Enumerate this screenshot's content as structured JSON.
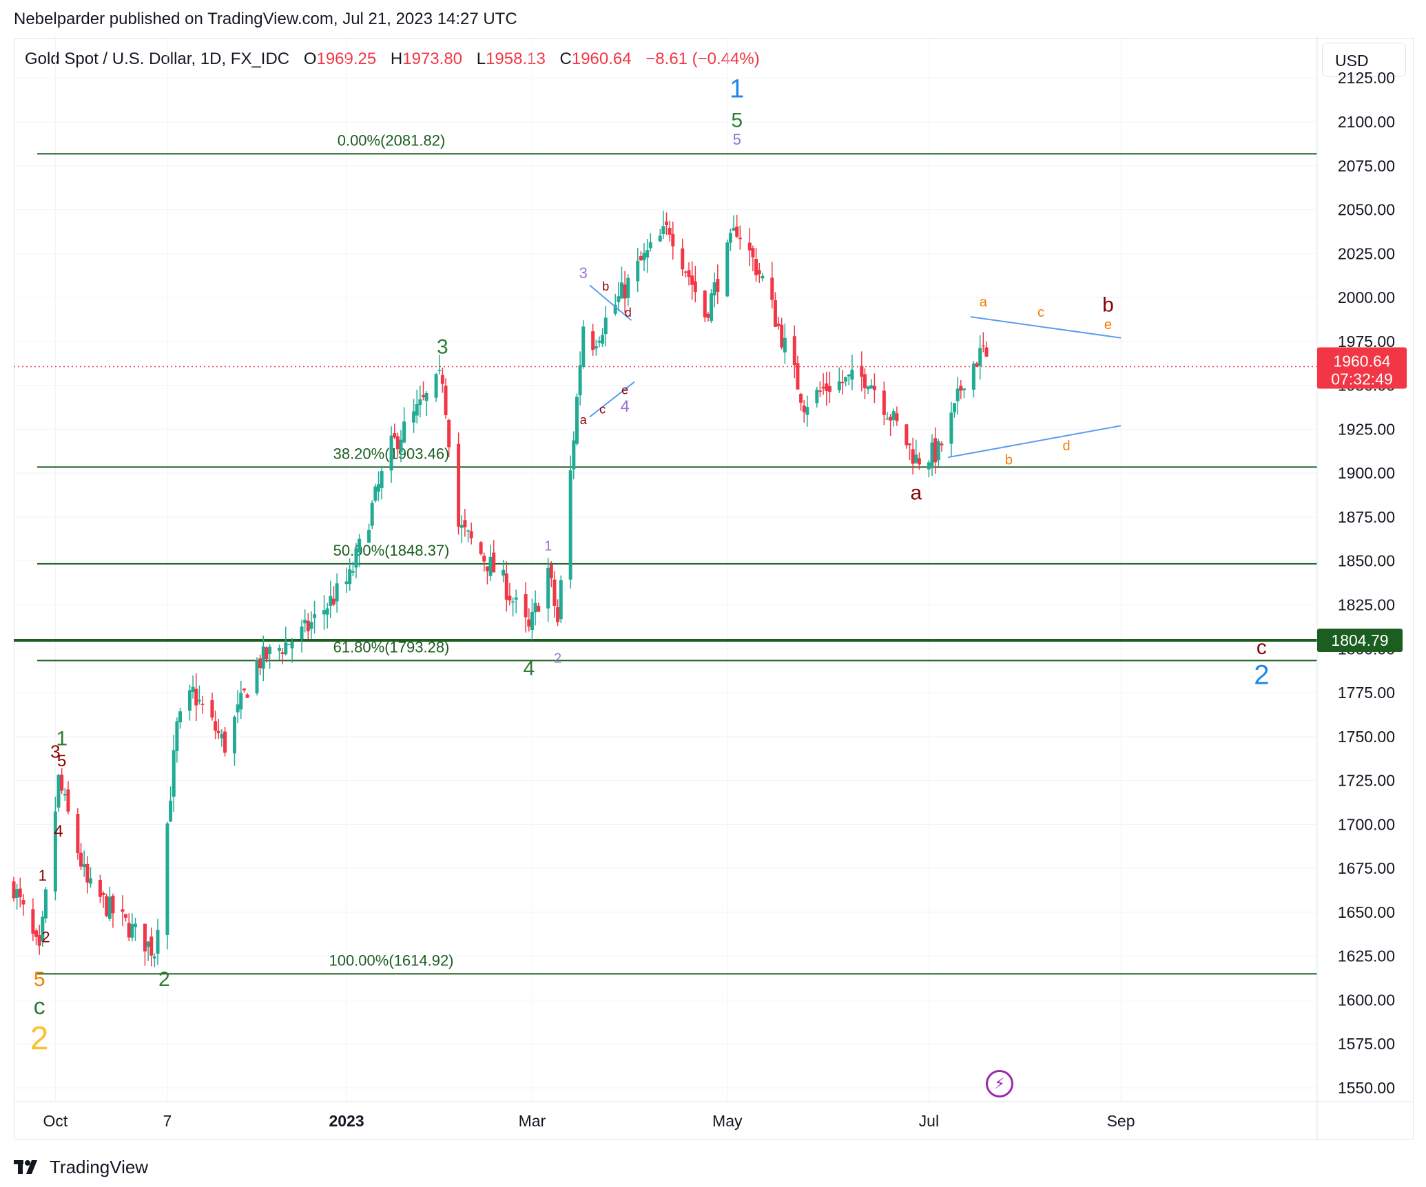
{
  "header": {
    "published_text": "Nebelparder published on TradingView.com, Jul 21, 2023 14:27 UTC"
  },
  "legend": {
    "symbol": "Gold Spot / U.S. Dollar, 1D, FX_IDC",
    "open_label": "O",
    "open": "1969.25",
    "high_label": "H",
    "high": "1973.80",
    "low_label": "L",
    "low": "1958.13",
    "close_label": "C",
    "close": "1960.64",
    "change": "−8.61 (−0.44%)"
  },
  "currency_button": "USD",
  "footer": {
    "brand": "TradingView"
  },
  "colors": {
    "up": "#22ab94",
    "down": "#f23645",
    "fib": "#1b5e20",
    "blue": "#1e88e5",
    "line_blue": "#5b9cf0",
    "purple": "#9575cd",
    "orange": "#f57c00",
    "dark_red": "#8b0000",
    "gold": "#fbc02d",
    "green_wave": "#2e7d32"
  },
  "chart_data": {
    "type": "candlestick",
    "y_axis": {
      "min": 1537,
      "max": 2125,
      "ticks": [
        "2125.00",
        "2100.00",
        "2075.00",
        "2050.00",
        "2025.00",
        "2000.00",
        "1975.00",
        "1950.00",
        "1925.00",
        "1900.00",
        "1875.00",
        "1850.00",
        "1825.00",
        "1800.00",
        "1775.00",
        "1750.00",
        "1725.00",
        "1700.00",
        "1675.00",
        "1650.00",
        "1625.00",
        "1600.00",
        "1575.00",
        "1550.00"
      ]
    },
    "x_axis": {
      "start": "2022-09-20",
      "end": "2023-10-19",
      "ticks": [
        {
          "label": "Oct",
          "date": "2022-10-03",
          "bold": false
        },
        {
          "label": "7",
          "date": "2022-11-07",
          "bold": false
        },
        {
          "label": "2023",
          "date": "2023-01-02",
          "bold": true
        },
        {
          "label": "Mar",
          "date": "2023-03-01",
          "bold": false
        },
        {
          "label": "May",
          "date": "2023-05-01",
          "bold": false
        },
        {
          "label": "Jul",
          "date": "2023-07-03",
          "bold": false
        },
        {
          "label": "Sep",
          "date": "2023-09-01",
          "bold": false
        }
      ]
    },
    "anchors": [
      {
        "date": "2022-09-20",
        "close": 1665
      },
      {
        "date": "2022-09-28",
        "close": 1625
      },
      {
        "date": "2022-10-04",
        "close": 1725
      },
      {
        "date": "2022-10-13",
        "close": 1665
      },
      {
        "date": "2022-10-21",
        "close": 1650
      },
      {
        "date": "2022-11-03",
        "close": 1628
      },
      {
        "date": "2022-11-10",
        "close": 1755
      },
      {
        "date": "2022-11-15",
        "close": 1775
      },
      {
        "date": "2022-11-25",
        "close": 1745
      },
      {
        "date": "2022-12-05",
        "close": 1792
      },
      {
        "date": "2022-12-20",
        "close": 1810
      },
      {
        "date": "2023-01-03",
        "close": 1840
      },
      {
        "date": "2023-01-16",
        "close": 1915
      },
      {
        "date": "2023-02-01",
        "close": 1955
      },
      {
        "date": "2023-02-06",
        "close": 1870
      },
      {
        "date": "2023-02-20",
        "close": 1838
      },
      {
        "date": "2023-02-28",
        "close": 1810
      },
      {
        "date": "2023-03-06",
        "close": 1845
      },
      {
        "date": "2023-03-09",
        "close": 1815
      },
      {
        "date": "2023-03-17",
        "close": 1985
      },
      {
        "date": "2023-03-20",
        "close": 1975
      },
      {
        "date": "2023-04-04",
        "close": 2020
      },
      {
        "date": "2023-04-13",
        "close": 2040
      },
      {
        "date": "2023-04-24",
        "close": 1990
      },
      {
        "date": "2023-05-04",
        "close": 2040
      },
      {
        "date": "2023-05-12",
        "close": 2010
      },
      {
        "date": "2023-05-25",
        "close": 1940
      },
      {
        "date": "2023-06-02",
        "close": 1950
      },
      {
        "date": "2023-06-14",
        "close": 1955
      },
      {
        "date": "2023-06-29",
        "close": 1908
      },
      {
        "date": "2023-07-06",
        "close": 1912
      },
      {
        "date": "2023-07-11",
        "close": 1935
      },
      {
        "date": "2023-07-14",
        "close": 1955
      },
      {
        "date": "2023-07-20",
        "close": 1970
      },
      {
        "date": "2023-07-21",
        "close": 1960.64
      }
    ],
    "fib_levels": [
      {
        "label": "0.00%(2081.82)",
        "price": 2081.82
      },
      {
        "label": "38.20%(1903.46)",
        "price": 1903.46
      },
      {
        "label": "50.00%(1848.37)",
        "price": 1848.37
      },
      {
        "label": "61.80%(1793.28)",
        "price": 1793.28
      },
      {
        "label": "100.00%(1614.92)",
        "price": 1614.92
      }
    ],
    "current_price": {
      "value": "1960.64",
      "countdown": "07:32:49",
      "price": 1960.64
    },
    "level_line": {
      "value": "1804.79",
      "price": 1804.79
    },
    "wave_labels": [
      {
        "text": "1",
        "date": "2023-05-04",
        "price": 2114,
        "color": "blue",
        "size": 38
      },
      {
        "text": "5",
        "date": "2023-05-04",
        "price": 2097,
        "color": "green_wave",
        "size": 30
      },
      {
        "text": "5",
        "date": "2023-05-04",
        "price": 2087,
        "color": "purple",
        "size": 22
      },
      {
        "text": "3",
        "date": "2023-02-01",
        "price": 1968,
        "color": "green_wave",
        "size": 30
      },
      {
        "text": "4",
        "date": "2023-02-28",
        "price": 1785,
        "color": "green_wave",
        "size": 30
      },
      {
        "text": "1",
        "date": "2022-10-05",
        "price": 1745,
        "color": "green_wave",
        "size": 30
      },
      {
        "text": "2",
        "date": "2022-11-06",
        "price": 1608,
        "color": "green_wave",
        "size": 30
      },
      {
        "text": "3",
        "date": "2022-10-03",
        "price": 1738,
        "color": "dark_red",
        "size": 26
      },
      {
        "text": "5",
        "date": "2022-10-05",
        "price": 1733,
        "color": "dark_red",
        "size": 24
      },
      {
        "text": "4",
        "date": "2022-10-04",
        "price": 1693,
        "color": "dark_red",
        "size": 24
      },
      {
        "text": "1",
        "date": "2022-09-29",
        "price": 1668,
        "color": "dark_red",
        "size": 22
      },
      {
        "text": "2",
        "date": "2022-09-30",
        "price": 1633,
        "color": "dark_red",
        "size": 22
      },
      {
        "text": "5",
        "date": "2022-09-28",
        "price": 1608,
        "color": "orange",
        "size": 30
      },
      {
        "text": "c",
        "date": "2022-09-28",
        "price": 1592,
        "color": "green_wave",
        "size": 34
      },
      {
        "text": "2",
        "date": "2022-09-28",
        "price": 1572,
        "color": "gold",
        "size": 48
      },
      {
        "text": "3",
        "date": "2023-03-17",
        "price": 2011,
        "color": "purple",
        "size": 22
      },
      {
        "text": "b",
        "date": "2023-03-24",
        "price": 2004,
        "color": "dark_red",
        "size": 18
      },
      {
        "text": "d",
        "date": "2023-03-31",
        "price": 1989,
        "color": "dark_red",
        "size": 18
      },
      {
        "text": "a",
        "date": "2023-03-17",
        "price": 1928,
        "color": "dark_red",
        "size": 18
      },
      {
        "text": "c",
        "date": "2023-03-23",
        "price": 1934,
        "color": "dark_red",
        "size": 18
      },
      {
        "text": "e",
        "date": "2023-03-30",
        "price": 1945,
        "color": "dark_red",
        "size": 18
      },
      {
        "text": "4",
        "date": "2023-03-30",
        "price": 1935,
        "color": "purple",
        "size": 24
      },
      {
        "text": "1",
        "date": "2023-03-06",
        "price": 1856,
        "color": "purple",
        "size": 20
      },
      {
        "text": "2",
        "date": "2023-03-09",
        "price": 1792,
        "color": "purple",
        "size": 20
      },
      {
        "text": "a",
        "date": "2023-06-29",
        "price": 1885,
        "color": "dark_red",
        "size": 30
      },
      {
        "text": "a",
        "date": "2023-07-20",
        "price": 1995,
        "color": "orange",
        "size": 20
      },
      {
        "text": "c",
        "date": "2023-08-07",
        "price": 1989,
        "color": "orange",
        "size": 20
      },
      {
        "text": "b",
        "date": "2023-08-28",
        "price": 1992,
        "color": "dark_red",
        "size": 30
      },
      {
        "text": "e",
        "date": "2023-08-28",
        "price": 1982,
        "color": "orange",
        "size": 20
      },
      {
        "text": "b",
        "date": "2023-07-28",
        "price": 1905,
        "color": "orange",
        "size": 20
      },
      {
        "text": "d",
        "date": "2023-08-15",
        "price": 1913,
        "color": "orange",
        "size": 20
      },
      {
        "text": "c",
        "date": "2023-10-15",
        "price": 1797,
        "color": "dark_red",
        "size": 30
      },
      {
        "text": "2",
        "date": "2023-10-15",
        "price": 1780,
        "color": "blue",
        "size": 40
      }
    ],
    "trendlines": [
      {
        "from": {
          "date": "2023-03-19",
          "price": 2007
        },
        "to": {
          "date": "2023-04-01",
          "price": 1987
        }
      },
      {
        "from": {
          "date": "2023-03-19",
          "price": 1932
        },
        "to": {
          "date": "2023-04-02",
          "price": 1952
        }
      },
      {
        "from": {
          "date": "2023-07-16",
          "price": 1989
        },
        "to": {
          "date": "2023-09-01",
          "price": 1977
        }
      },
      {
        "from": {
          "date": "2023-07-09",
          "price": 1909
        },
        "to": {
          "date": "2023-09-01",
          "price": 1927
        }
      }
    ]
  }
}
